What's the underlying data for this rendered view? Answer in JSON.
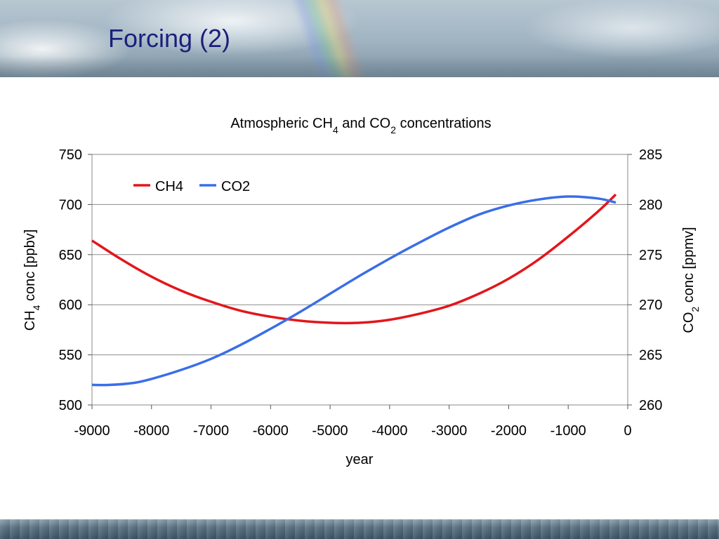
{
  "slide": {
    "title": "Forcing (2)"
  },
  "chart_data": {
    "type": "line",
    "title_parts": [
      {
        "t": "Atmospheric CH"
      },
      {
        "t": "4",
        "sub": true
      },
      {
        "t": " and CO"
      },
      {
        "t": "2",
        "sub": true
      },
      {
        "t": " concentrations"
      }
    ],
    "xlabel": "year",
    "ylabel_left_parts": [
      {
        "t": "CH"
      },
      {
        "t": "4",
        "sub": true
      },
      {
        "t": " conc [ppbv]"
      }
    ],
    "ylabel_right_parts": [
      {
        "t": "CO"
      },
      {
        "t": "2",
        "sub": true
      },
      {
        "t": " conc [ppmv]"
      }
    ],
    "xlim": [
      -9000,
      0
    ],
    "xticks": [
      -9000,
      -8000,
      -7000,
      -6000,
      -5000,
      -4000,
      -3000,
      -2000,
      -1000,
      0
    ],
    "ylim_left": [
      500,
      750
    ],
    "yticks_left": [
      500,
      550,
      600,
      650,
      700,
      750
    ],
    "ylim_right": [
      260,
      285
    ],
    "yticks_right": [
      260,
      265,
      270,
      275,
      280,
      285
    ],
    "grid": "horizontal",
    "legend": "top-left",
    "series": [
      {
        "name": "CH4",
        "color": "#e3161b",
        "axis": "left",
        "x": [
          -9000,
          -8500,
          -8000,
          -7500,
          -7000,
          -6500,
          -6000,
          -5500,
          -5000,
          -4500,
          -4000,
          -3500,
          -3000,
          -2500,
          -2000,
          -1500,
          -1000,
          -500,
          -200
        ],
        "y": [
          664,
          645,
          628,
          614,
          603,
          594,
          588,
          584,
          582,
          582,
          585,
          591,
          599,
          611,
          626,
          645,
          668,
          693,
          710
        ]
      },
      {
        "name": "CO2",
        "color": "#3a6ee8",
        "axis": "right",
        "x": [
          -9000,
          -8700,
          -8300,
          -8000,
          -7500,
          -7000,
          -6500,
          -6000,
          -5500,
          -5000,
          -4500,
          -4000,
          -3500,
          -3000,
          -2500,
          -2000,
          -1500,
          -1000,
          -500,
          -200
        ],
        "y": [
          262.0,
          262.0,
          262.2,
          262.6,
          263.5,
          264.6,
          266.0,
          267.6,
          269.3,
          271.1,
          272.9,
          274.6,
          276.2,
          277.7,
          279.0,
          279.9,
          280.5,
          280.8,
          280.6,
          280.2
        ]
      }
    ]
  }
}
